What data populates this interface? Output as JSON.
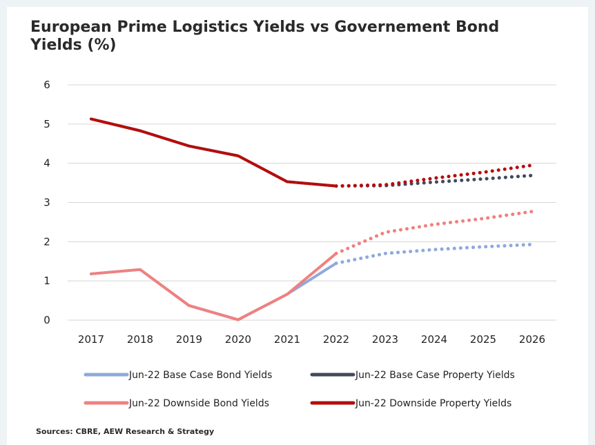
{
  "chart_data": {
    "type": "line",
    "title": "European Prime Logistics Yields vs Governement Bond Yields (%)",
    "x": [
      "2017",
      "2018",
      "2019",
      "2020",
      "2021",
      "2022",
      "2023",
      "2024",
      "2025",
      "2026"
    ],
    "ylim": [
      0,
      6
    ],
    "yticks": [
      "0",
      "1",
      "2",
      "3",
      "4",
      "5",
      "6"
    ],
    "grid": "horizontal",
    "legend_position": "bottom",
    "series": [
      {
        "name": "Jun-22 Base Case Bond Yields",
        "color": "#8fa9dc",
        "values": [
          1.18,
          1.29,
          0.37,
          0.01,
          0.66,
          1.45,
          1.7,
          1.8,
          1.87,
          1.93
        ],
        "dashed_from_index": 5
      },
      {
        "name": "Jun-22 Base Case Property Yields",
        "color": "#414a5e",
        "values": [
          5.13,
          4.83,
          4.44,
          4.19,
          3.53,
          3.42,
          3.43,
          3.52,
          3.6,
          3.69
        ],
        "dashed_from_index": 5
      },
      {
        "name": "Jun-22 Downside Bond Yields",
        "color": "#f08080",
        "values": [
          1.18,
          1.29,
          0.37,
          0.01,
          0.66,
          1.7,
          2.24,
          2.44,
          2.59,
          2.77
        ],
        "dashed_from_index": 5
      },
      {
        "name": "Jun-22 Downside Property Yields",
        "color": "#b50d0d",
        "values": [
          5.13,
          4.83,
          4.44,
          4.19,
          3.53,
          3.42,
          3.45,
          3.62,
          3.77,
          3.95
        ],
        "dashed_from_index": 5
      }
    ],
    "source": "Sources: CBRE, AEW Research & Strategy"
  }
}
